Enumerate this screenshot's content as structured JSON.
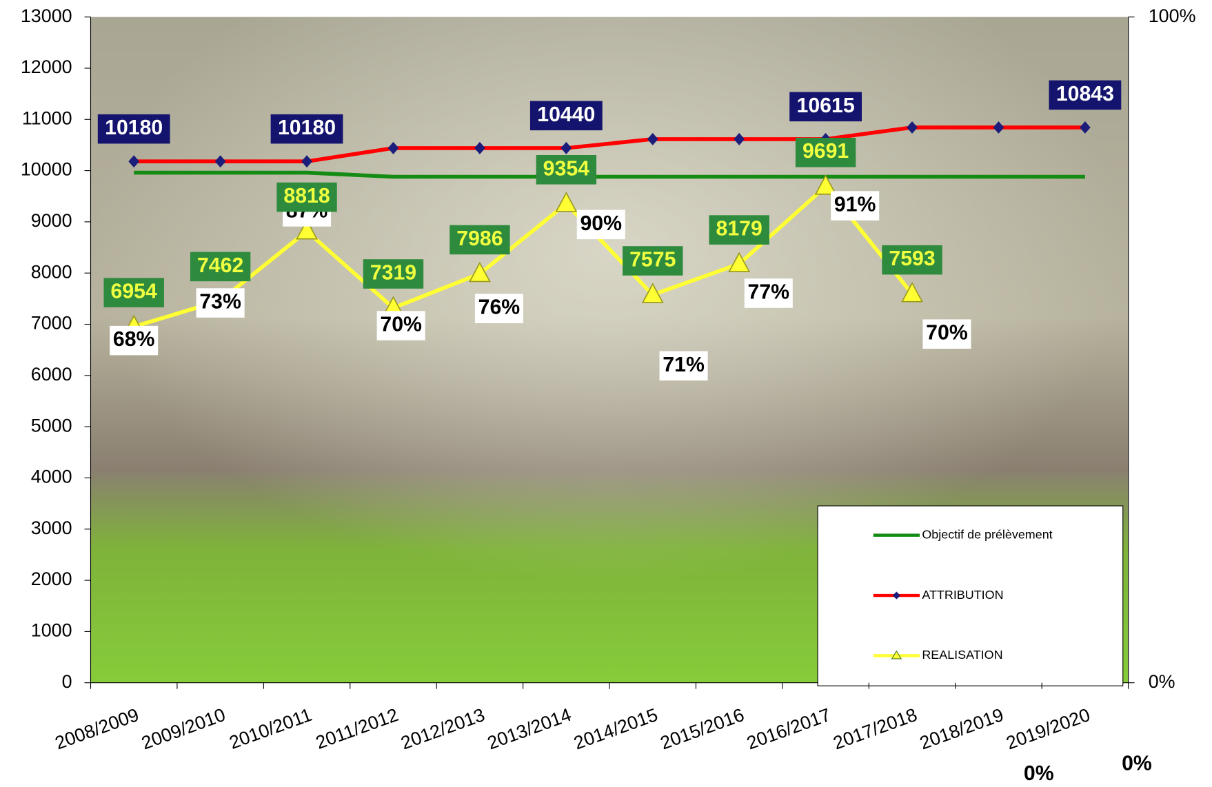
{
  "chart_data": {
    "type": "line",
    "categories": [
      "2008/2009",
      "2009/2010",
      "2010/2011",
      "2011/2012",
      "2012/2013",
      "2013/2014",
      "2014/2015",
      "2015/2016",
      "2016/2017",
      "2017/2018",
      "2018/2019",
      "2019/2020"
    ],
    "series": [
      {
        "name": "Objectif de prélèvement",
        "color": "#148c14",
        "values": [
          9960,
          9960,
          9960,
          9880,
          9880,
          9880,
          9880,
          9880,
          9880,
          9880,
          9880,
          9880
        ]
      },
      {
        "name": "ATTRIBUTION",
        "color": "#ff0000",
        "marker_color": "#1c1c7a",
        "values": [
          10180,
          10180,
          10180,
          10440,
          10440,
          10440,
          10615,
          10615,
          10615,
          10843,
          10843,
          10843
        ],
        "value_labels": [
          "10180",
          null,
          "10180",
          null,
          null,
          "10440",
          null,
          null,
          "10615",
          null,
          null,
          "10843"
        ]
      },
      {
        "name": "REALISATION",
        "color": "#ffff33",
        "values": [
          6954,
          7462,
          8818,
          7319,
          7986,
          9354,
          7575,
          8179,
          9691,
          7593,
          null,
          null
        ]
      }
    ],
    "rate_labels": [
      "68%",
      "73%",
      "87%",
      "70%",
      "76%",
      "90%",
      "71%",
      "77%",
      "91%",
      "70%",
      "0%",
      "0%"
    ],
    "ylim": [
      0,
      13000
    ],
    "yticks": [
      0,
      1000,
      2000,
      3000,
      4000,
      5000,
      6000,
      7000,
      8000,
      9000,
      10000,
      11000,
      12000,
      13000
    ],
    "y2lim": [
      0,
      100
    ],
    "y2ticks": [
      {
        "value": 0,
        "label": "0%"
      },
      {
        "value": 100,
        "label": "100%"
      }
    ],
    "legend": "lower right"
  }
}
